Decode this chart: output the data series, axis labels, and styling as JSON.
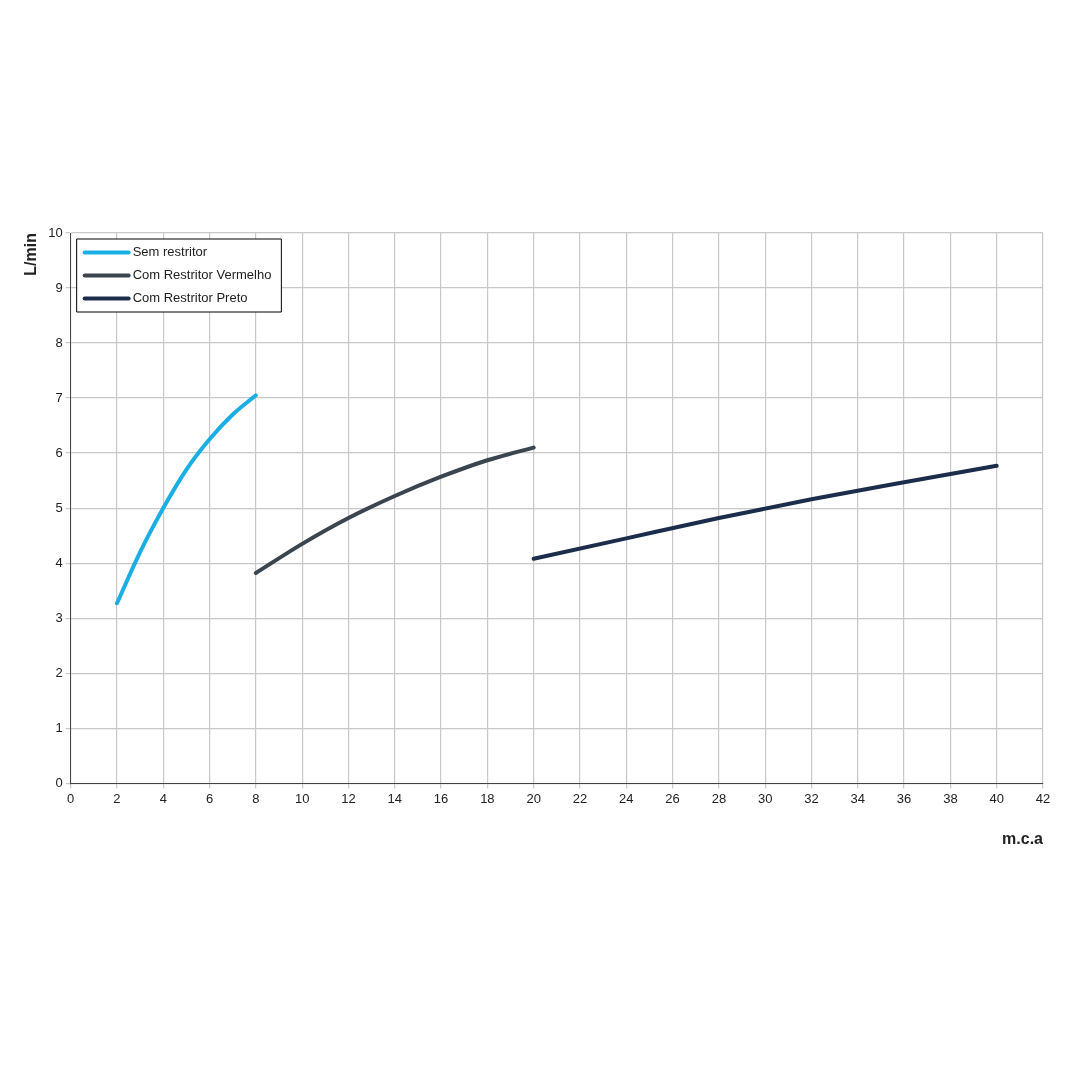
{
  "chart_data": {
    "type": "line",
    "xlabel": "m.c.a",
    "ylabel": "L/min",
    "xlim": [
      0,
      42
    ],
    "xticks": [
      0,
      2,
      4,
      6,
      8,
      10,
      12,
      14,
      16,
      18,
      20,
      22,
      24,
      26,
      28,
      30,
      32,
      34,
      36,
      38,
      40,
      42
    ],
    "ylim": [
      0,
      10
    ],
    "yticks": [
      0,
      1,
      2,
      3,
      4,
      5,
      6,
      7,
      8,
      9,
      10
    ],
    "grid": true,
    "legend": "top left",
    "marker": "none",
    "line_style": "solid",
    "series": [
      {
        "name": "Sem restritor",
        "color": "#1aaee5",
        "x": [
          2,
          3,
          4,
          5,
          6,
          7,
          8
        ],
        "values": [
          3.27,
          4.2,
          5.0,
          5.7,
          6.25,
          6.7,
          7.05
        ]
      },
      {
        "name": "Com Restritor Vermelho",
        "color": "#3a4550",
        "x": [
          8,
          10,
          12,
          14,
          16,
          18,
          20
        ],
        "values": [
          3.82,
          4.35,
          4.82,
          5.22,
          5.57,
          5.87,
          6.1
        ]
      },
      {
        "name": "Com Restritor Preto",
        "color": "#1b2d4a",
        "x": [
          20,
          24,
          28,
          32,
          36,
          40
        ],
        "values": [
          4.08,
          4.45,
          4.82,
          5.16,
          5.47,
          5.77
        ]
      }
    ]
  }
}
